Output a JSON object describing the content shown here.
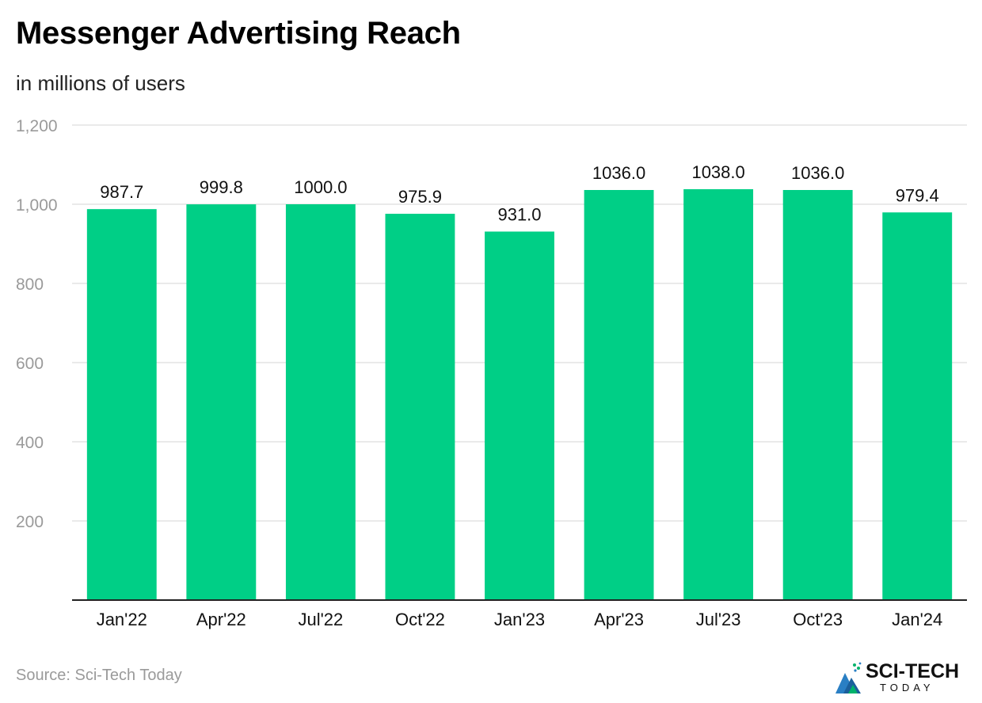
{
  "header": {
    "title": "Messenger Advertising Reach",
    "subtitle": "in millions of users"
  },
  "chart_data": {
    "type": "bar",
    "title": "Messenger Advertising Reach",
    "subtitle": "in millions of users",
    "categories": [
      "Jan'22",
      "Apr'22",
      "Jul'22",
      "Oct'22",
      "Jan'23",
      "Apr'23",
      "Jul'23",
      "Oct'23",
      "Jan'24"
    ],
    "values": [
      987.7,
      999.8,
      1000.0,
      975.9,
      931.0,
      1036.0,
      1038.0,
      1036.0,
      979.4
    ],
    "value_labels": [
      "987.7",
      "999.8",
      "1000.0",
      "975.9",
      "931.0",
      "1036.0",
      "1038.0",
      "1036.0",
      "979.4"
    ],
    "ylim": [
      0,
      1200
    ],
    "yticks": [
      200,
      400,
      600,
      800,
      1000,
      1200
    ],
    "ytick_labels": [
      "200",
      "400",
      "600",
      "800",
      "1,000",
      "1,200"
    ],
    "xlabel": "",
    "ylabel": "",
    "grid": true,
    "bar_color": "#00cf86"
  },
  "footer": {
    "source": "Source: Sci-Tech Today",
    "brand_name": "SCI-TECH",
    "brand_sub": "TODAY"
  },
  "colors": {
    "bar": "#00cf86",
    "grid": "#e3e3e3",
    "axis_text": "#9a9a9a",
    "brand_blue": "#2a7fc4",
    "brand_green": "#00b26b"
  }
}
